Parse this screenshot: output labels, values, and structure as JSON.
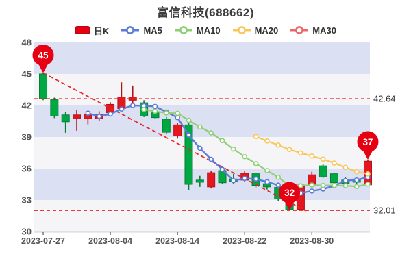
{
  "title": "富信科技(688662)",
  "legend": [
    {
      "id": "kline",
      "name": "日K",
      "type": "candle",
      "color": "#e60012",
      "border": "#b30b10"
    },
    {
      "id": "ma5",
      "name": "MA5",
      "type": "line",
      "color": "#5b7bd5"
    },
    {
      "id": "ma10",
      "name": "MA10",
      "type": "line",
      "color": "#8fce74"
    },
    {
      "id": "ma20",
      "name": "MA20",
      "type": "line",
      "color": "#f8c75b"
    },
    {
      "id": "ma30",
      "name": "MA30",
      "type": "line",
      "color": "#ee6666"
    }
  ],
  "chart_data": {
    "type": "candlestick",
    "title": "富信科技(688662)",
    "ylim": [
      30,
      48
    ],
    "y_ticks": [
      48,
      45,
      42,
      39,
      36,
      33,
      30
    ],
    "x_tick_labels": [
      "2023-07-27",
      "2023-08-04",
      "2023-08-14",
      "2023-08-22",
      "2023-08-30"
    ],
    "x_tick_indices": [
      0,
      6,
      12,
      18,
      24
    ],
    "up_color": "#e3171d",
    "up_border": "#b5121a",
    "down_color": "#00a843",
    "down_border": "#077d36",
    "band_colors": [
      "#dbe1f2",
      "#f5f5f7"
    ],
    "axis_color": "#555",
    "dash_color": "#ee2020",
    "marker_color": "#e60012",
    "candles": [
      {
        "date": "2023-07-27",
        "o": 45.0,
        "h": 45.1,
        "l": 42.5,
        "c": 42.64
      },
      {
        "date": "2023-07-28",
        "o": 42.55,
        "h": 42.75,
        "l": 40.8,
        "c": 41.0
      },
      {
        "date": "2023-07-31",
        "o": 41.1,
        "h": 41.35,
        "l": 39.4,
        "c": 40.45
      },
      {
        "date": "2023-08-01",
        "o": 40.8,
        "h": 41.6,
        "l": 39.6,
        "c": 41.1
      },
      {
        "date": "2023-08-02",
        "o": 40.75,
        "h": 41.3,
        "l": 40.2,
        "c": 41.15
      },
      {
        "date": "2023-08-03",
        "o": 40.75,
        "h": 41.45,
        "l": 40.55,
        "c": 41.15
      },
      {
        "date": "2023-08-04",
        "o": 41.3,
        "h": 42.3,
        "l": 41.1,
        "c": 42.1
      },
      {
        "date": "2023-08-07",
        "o": 41.7,
        "h": 44.2,
        "l": 41.5,
        "c": 42.8
      },
      {
        "date": "2023-08-08",
        "o": 42.5,
        "h": 43.9,
        "l": 42.0,
        "c": 42.8
      },
      {
        "date": "2023-08-09",
        "o": 42.25,
        "h": 42.5,
        "l": 40.9,
        "c": 41.0
      },
      {
        "date": "2023-08-10",
        "o": 41.3,
        "h": 41.55,
        "l": 40.7,
        "c": 40.85
      },
      {
        "date": "2023-08-11",
        "o": 40.7,
        "h": 40.9,
        "l": 39.3,
        "c": 39.45
      },
      {
        "date": "2023-08-14",
        "o": 39.1,
        "h": 40.3,
        "l": 38.85,
        "c": 40.15
      },
      {
        "date": "2023-08-15",
        "o": 40.15,
        "h": 40.3,
        "l": 33.95,
        "c": 34.5
      },
      {
        "date": "2023-08-16",
        "o": 34.9,
        "h": 35.3,
        "l": 34.25,
        "c": 34.7
      },
      {
        "date": "2023-08-17",
        "o": 34.25,
        "h": 35.75,
        "l": 34.1,
        "c": 35.6
      },
      {
        "date": "2023-08-18",
        "o": 35.8,
        "h": 35.95,
        "l": 34.5,
        "c": 34.65
      },
      {
        "date": "2023-08-21",
        "o": 35.0,
        "h": 35.5,
        "l": 34.5,
        "c": 34.8
      },
      {
        "date": "2023-08-22",
        "o": 34.9,
        "h": 35.8,
        "l": 34.75,
        "c": 35.55
      },
      {
        "date": "2023-08-23",
        "o": 35.5,
        "h": 35.6,
        "l": 34.2,
        "c": 34.4
      },
      {
        "date": "2023-08-24",
        "o": 34.55,
        "h": 34.7,
        "l": 34.0,
        "c": 34.25
      },
      {
        "date": "2023-08-25",
        "o": 34.2,
        "h": 34.35,
        "l": 32.9,
        "c": 33.1
      },
      {
        "date": "2023-08-28",
        "o": 33.05,
        "h": 33.2,
        "l": 32.01,
        "c": 32.1
      },
      {
        "date": "2023-08-29",
        "o": 32.1,
        "h": 34.55,
        "l": 32.0,
        "c": 34.43
      },
      {
        "date": "2023-08-30",
        "o": 34.4,
        "h": 35.7,
        "l": 34.2,
        "c": 35.4
      },
      {
        "date": "2023-08-31",
        "o": 36.25,
        "h": 36.4,
        "l": 35.1,
        "c": 35.2
      },
      {
        "date": "2023-09-01",
        "o": 35.5,
        "h": 35.6,
        "l": 34.5,
        "c": 34.65
      },
      {
        "date": "2023-09-04",
        "o": 34.9,
        "h": 35.2,
        "l": 34.35,
        "c": 34.6
      },
      {
        "date": "2023-09-05",
        "o": 35.0,
        "h": 35.15,
        "l": 34.45,
        "c": 34.7
      },
      {
        "date": "2023-09-06",
        "o": 34.45,
        "h": 36.85,
        "l": 34.3,
        "c": 36.7
      }
    ],
    "ma_series": [
      {
        "name": "MA5",
        "window": 5,
        "color": "#5b7bd5",
        "width": 2.4
      },
      {
        "name": "MA10",
        "window": 10,
        "color": "#8fce74",
        "width": 2.2
      },
      {
        "name": "MA20",
        "window": 20,
        "color": "#f8c75b",
        "width": 2.2
      },
      {
        "name": "MA30",
        "window": 30,
        "color": "#ee6666",
        "width": 2.2
      }
    ],
    "ref_lines": [
      {
        "value": 42.64,
        "label": "42.64"
      },
      {
        "value": 32.01,
        "label": "32.01"
      }
    ],
    "trend_line": {
      "from_index": 0,
      "from_price": 45.1,
      "to_index": 23.5,
      "to_price": 31.95
    },
    "markers": [
      {
        "label": "45",
        "index": 0,
        "price": 45.1
      },
      {
        "label": "32",
        "index": 22,
        "price": 32.01
      },
      {
        "label": "37",
        "index": 29,
        "price": 36.85
      }
    ]
  }
}
